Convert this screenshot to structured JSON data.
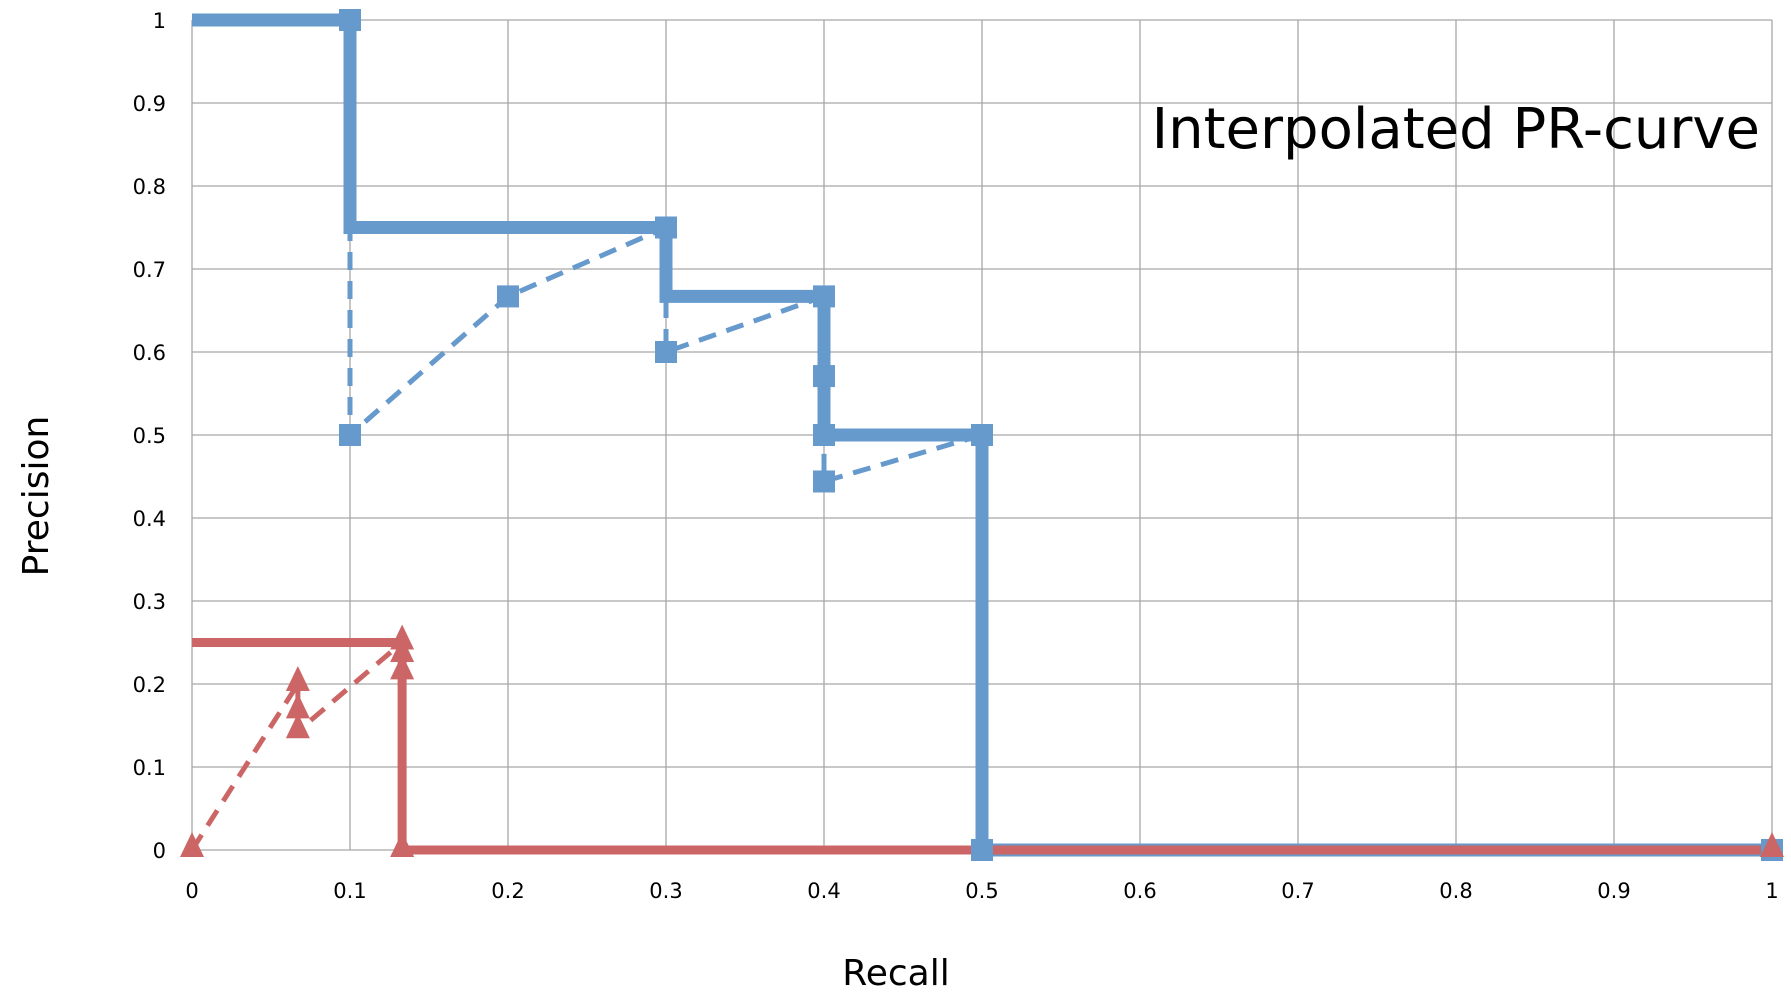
{
  "chart_data": {
    "type": "line",
    "title": "Interpolated PR-curve",
    "xlabel": "Recall",
    "ylabel": "Precision",
    "xlim": [
      0,
      1
    ],
    "ylim": [
      0,
      1
    ],
    "grid": true,
    "x_ticks": [
      {
        "value": 0,
        "label": "0"
      },
      {
        "value": 0.1,
        "label": "0.1"
      },
      {
        "value": 0.2,
        "label": "0.2"
      },
      {
        "value": 0.3,
        "label": "0.3"
      },
      {
        "value": 0.4,
        "label": "0.4"
      },
      {
        "value": 0.5,
        "label": "0.5"
      },
      {
        "value": 0.6,
        "label": "0.6"
      },
      {
        "value": 0.7,
        "label": "0.7"
      },
      {
        "value": 0.8,
        "label": "0.8"
      },
      {
        "value": 0.9,
        "label": "0.9"
      },
      {
        "value": 1,
        "label": "1"
      }
    ],
    "y_ticks": [
      {
        "value": 0,
        "label": "0"
      },
      {
        "value": 0.1,
        "label": "0.1"
      },
      {
        "value": 0.2,
        "label": "0.2"
      },
      {
        "value": 0.3,
        "label": "0.3"
      },
      {
        "value": 0.4,
        "label": "0.4"
      },
      {
        "value": 0.5,
        "label": "0.5"
      },
      {
        "value": 0.6,
        "label": "0.6"
      },
      {
        "value": 0.7,
        "label": "0.7"
      },
      {
        "value": 0.8,
        "label": "0.8"
      },
      {
        "value": 0.9,
        "label": "0.9"
      },
      {
        "value": 1,
        "label": "1"
      }
    ],
    "series": [
      {
        "style": "interpolated",
        "color": "#6699cc",
        "points": [
          [
            0,
            1
          ],
          [
            0.1,
            1
          ],
          [
            0.1,
            0.75
          ],
          [
            0.3,
            0.75
          ],
          [
            0.3,
            0.667
          ],
          [
            0.4,
            0.667
          ],
          [
            0.4,
            0.5
          ],
          [
            0.5,
            0.5
          ],
          [
            0.5,
            0
          ],
          [
            1,
            0
          ]
        ],
        "markers": [
          [
            0.1,
            1
          ],
          [
            0.3,
            0.75
          ],
          [
            0.4,
            0.667
          ],
          [
            0.4,
            0.571
          ],
          [
            0.4,
            0.5
          ],
          [
            0.5,
            0.5
          ],
          [
            0.5,
            0
          ],
          [
            1,
            0
          ]
        ],
        "marker": "square"
      },
      {
        "style": "raw",
        "color": "#6699cc",
        "points": [
          [
            0.1,
            1
          ],
          [
            0.1,
            0.5
          ],
          [
            0.2,
            0.667
          ],
          [
            0.3,
            0.75
          ],
          [
            0.3,
            0.6
          ],
          [
            0.4,
            0.667
          ],
          [
            0.4,
            0.571
          ],
          [
            0.4,
            0.5
          ],
          [
            0.4,
            0.444
          ],
          [
            0.5,
            0.5
          ]
        ],
        "markers": [
          [
            0.1,
            0.5
          ],
          [
            0.2,
            0.667
          ],
          [
            0.3,
            0.6
          ],
          [
            0.4,
            0.444
          ]
        ],
        "marker": "square"
      },
      {
        "style": "interpolated",
        "color": "#cc6666",
        "points": [
          [
            0,
            0.25
          ],
          [
            0.133,
            0.25
          ],
          [
            0.133,
            0
          ],
          [
            1,
            0
          ]
        ],
        "markers": [
          [
            0.133,
            0.25
          ],
          [
            0.133,
            0
          ],
          [
            1,
            0
          ]
        ],
        "marker": "triangle"
      },
      {
        "style": "raw",
        "color": "#cc6666",
        "points": [
          [
            0,
            0
          ],
          [
            0.067,
            0.2
          ],
          [
            0.067,
            0.167
          ],
          [
            0.067,
            0.143
          ],
          [
            0.133,
            0.25
          ],
          [
            0.133,
            0.235
          ],
          [
            0.133,
            0.214
          ],
          [
            0.133,
            0
          ],
          [
            1,
            0
          ]
        ],
        "markers": [
          [
            0,
            0
          ],
          [
            0.067,
            0.2
          ],
          [
            0.067,
            0.167
          ],
          [
            0.067,
            0.143
          ],
          [
            0.133,
            0.235
          ],
          [
            0.133,
            0.214
          ]
        ],
        "marker": "triangle"
      }
    ]
  }
}
